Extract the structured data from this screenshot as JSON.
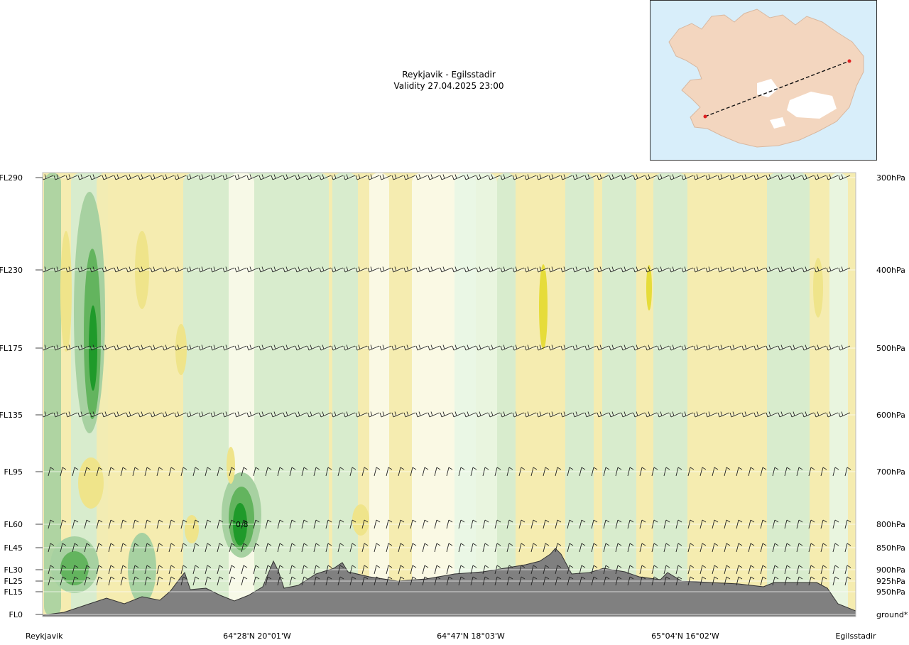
{
  "header": {
    "route": "Reykjavik - Egilsstadir",
    "validity": "Validity 27.04.2025 23:00"
  },
  "chart_data": {
    "type": "heatmap",
    "title": "Reykjavik - Egilsstadir",
    "subtitle": "Validity 27.04.2025 23:00",
    "left_axis_labels": [
      "FL290",
      "FL230",
      "FL175",
      "FL135",
      "FL95",
      "FL60",
      "FL45",
      "FL30",
      "FL25",
      "FL15",
      "FL0"
    ],
    "right_axis_labels": [
      "300hPa",
      "400hPa",
      "500hPa",
      "600hPa",
      "700hPa",
      "800hPa",
      "850hPa",
      "900hPa",
      "925hPa",
      "950hPa",
      "ground*"
    ],
    "x_labels": [
      "Reykjavik",
      "64°28'N 20°01'W",
      "64°47'N 18°03'W",
      "65°04'N 16°02'W",
      "Egilsstadir"
    ],
    "annotations": [
      "0.8"
    ],
    "colors": {
      "pale_yellow": "#f5ecb0",
      "mid_yellow": "#efe48a",
      "strong_yellow": "#e6dc3a",
      "white_band": "#fbfbea",
      "pale_green": "#d5ecd0",
      "light_green": "#e8f6e4",
      "mid_green": "#a7d1a1",
      "green": "#63b45e",
      "dark_green": "#1f9a2a",
      "terrain": "#808080",
      "route_line": "#111111",
      "endpoint": "#e02020"
    }
  },
  "inset_map": {
    "route_start": "Reykjavik",
    "route_end": "Egilsstadir"
  }
}
